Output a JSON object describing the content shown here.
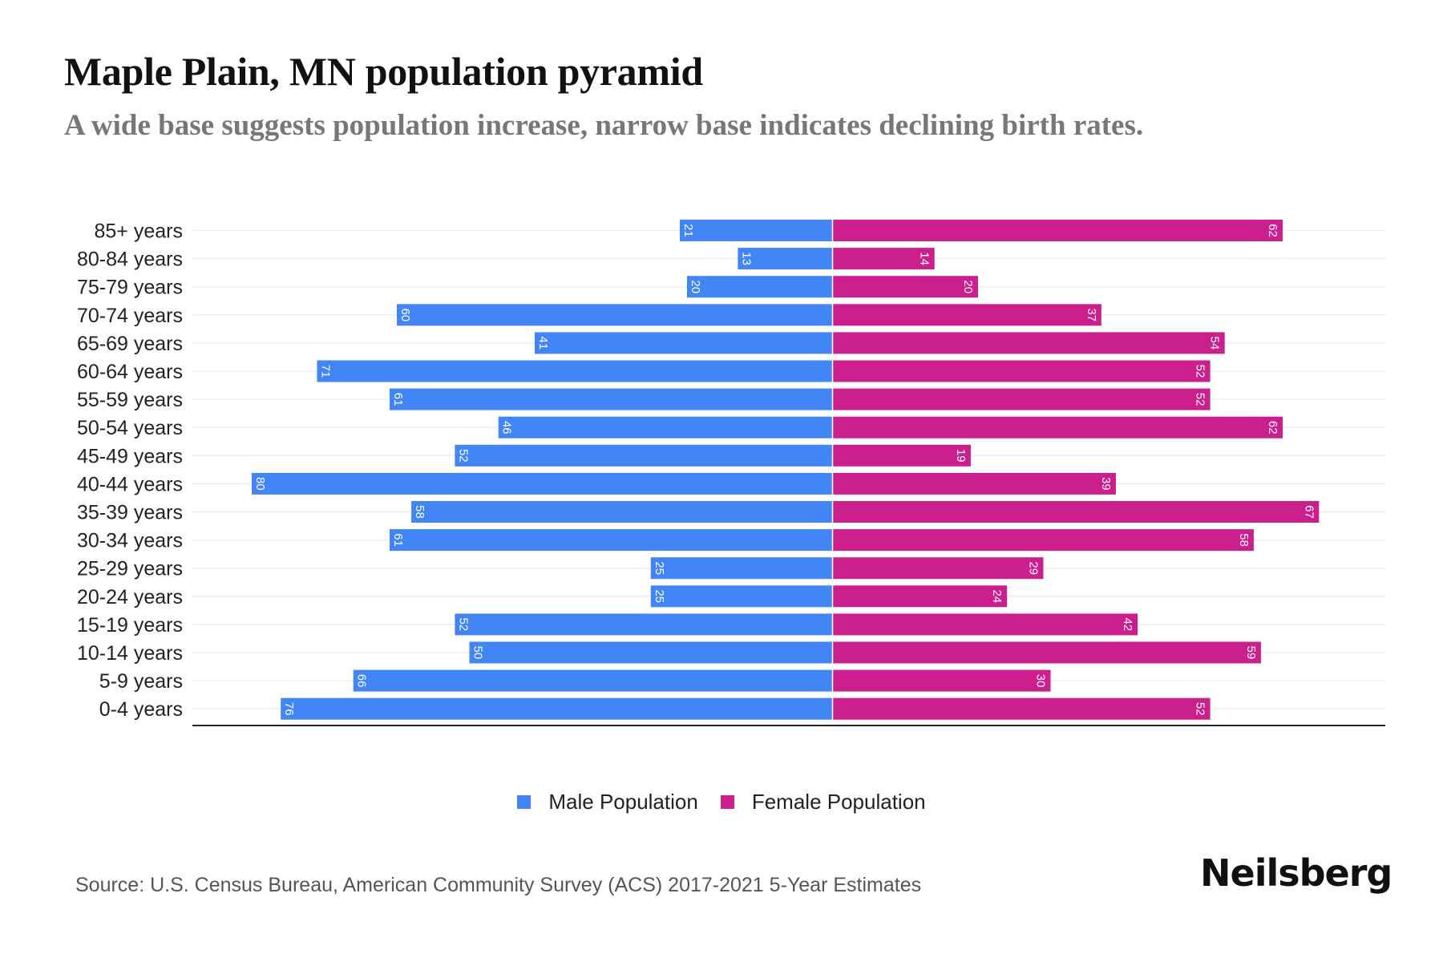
{
  "header": {
    "title": "Maple Plain, MN population pyramid",
    "subtitle": "A wide base suggests population increase, narrow base indicates declining birth rates."
  },
  "footer": {
    "source": "Source: U.S. Census Bureau, American Community Survey (ACS) 2017-2021 5-Year Estimates",
    "logo": "Neilsberg"
  },
  "legend": [
    {
      "name": "Male Population",
      "color": "#4285F4"
    },
    {
      "name": "Female Population",
      "color": "#CC1F8E"
    }
  ],
  "chart_data": {
    "type": "bar",
    "orientation": "horizontal",
    "subtype": "population-pyramid",
    "title": "Maple Plain, MN population pyramid",
    "subtitle": "A wide base suggests population increase, narrow base indicates declining birth rates.",
    "xlabel": "",
    "ylabel": "",
    "legend_position": "bottom-center",
    "grid": true,
    "categories": [
      "85+ years",
      "80-84 years",
      "75-79 years",
      "70-74 years",
      "65-69 years",
      "60-64 years",
      "55-59 years",
      "50-54 years",
      "45-49 years",
      "40-44 years",
      "35-39 years",
      "30-34 years",
      "25-29 years",
      "20-24 years",
      "15-19 years",
      "10-14 years",
      "5-9 years",
      "0-4 years"
    ],
    "series": [
      {
        "name": "Male Population",
        "color": "#4285F4",
        "side": "left",
        "values": [
          21,
          13,
          20,
          60,
          41,
          71,
          61,
          46,
          52,
          80,
          58,
          61,
          25,
          25,
          52,
          50,
          66,
          76
        ]
      },
      {
        "name": "Female Population",
        "color": "#CC1F8E",
        "side": "right",
        "values": [
          62,
          14,
          20,
          37,
          54,
          52,
          52,
          62,
          19,
          39,
          67,
          58,
          29,
          24,
          42,
          59,
          30,
          52
        ]
      }
    ],
    "xlim": [
      -88,
      75
    ]
  }
}
